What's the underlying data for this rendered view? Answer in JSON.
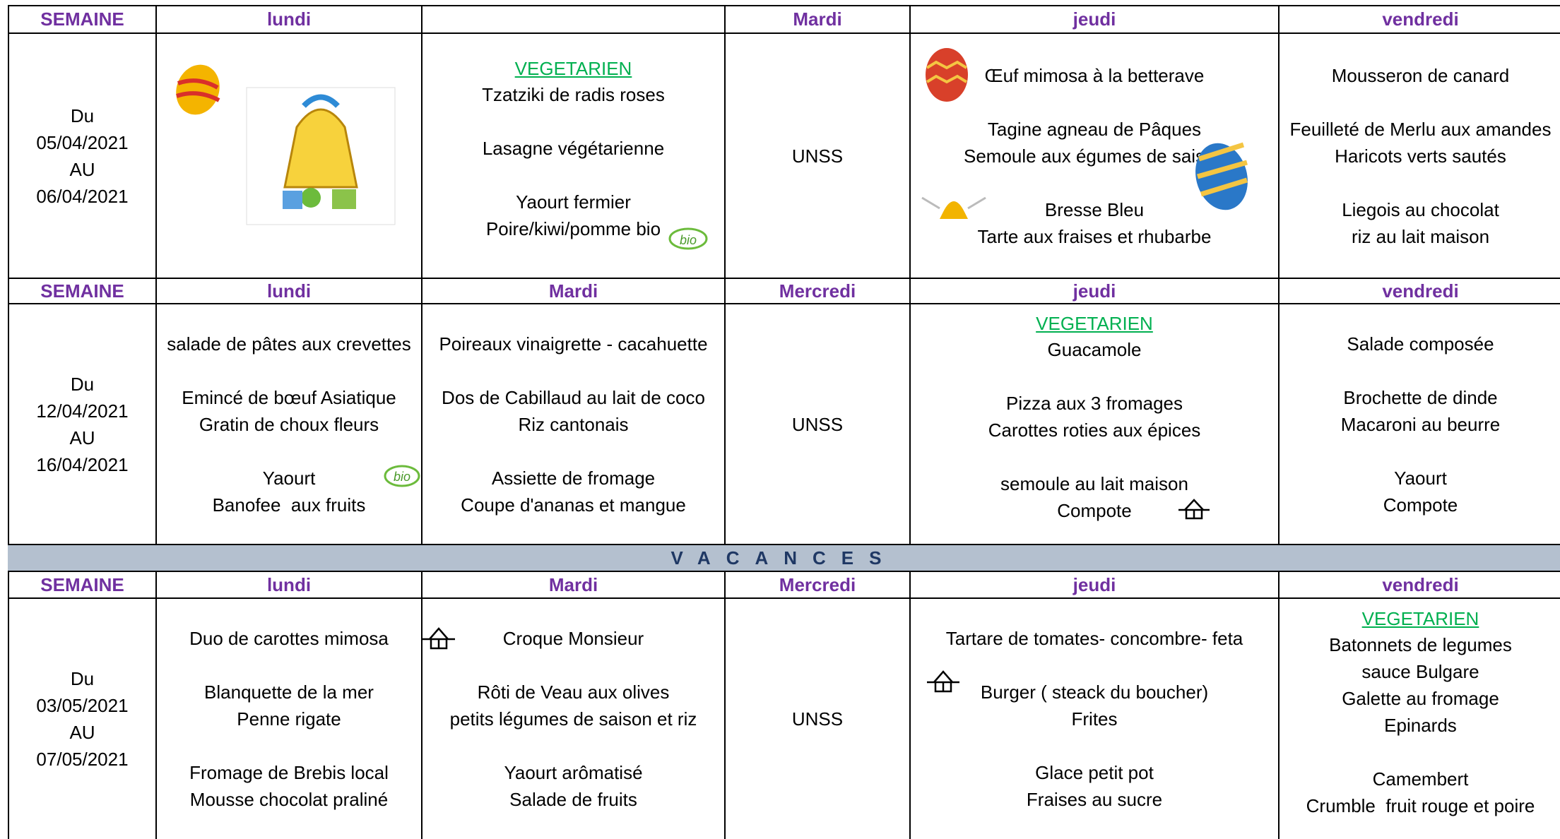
{
  "blocks": [
    {
      "header": [
        "SEMAINE",
        "lundi",
        null,
        "Mardi",
        "jeudi",
        "vendredi"
      ],
      "week": [
        "Du",
        "05/04/2021",
        "AU",
        "06/04/2021"
      ],
      "days": [
        {
          "groups": []
        },
        {
          "tag": "VEGETARIEN",
          "groups": [
            [
              "Tzatziki de radis roses"
            ],
            [
              "Lasagne végétarienne"
            ],
            [
              "Yaourt fermier",
              "Poire/kiwi/pomme bio"
            ]
          ]
        },
        {
          "groups": [
            [
              "UNSS"
            ]
          ]
        },
        {
          "groups": [
            [
              "Œuf mimosa à la betterave"
            ],
            [
              "Tagine agneau de Pâques",
              "Semoule aux égumes de saison"
            ],
            [
              "Bresse Bleu",
              "Tarte aux fraises et rhubarbe"
            ]
          ]
        },
        {
          "groups": [
            [
              "Mousseron de canard"
            ],
            [
              "Feuilleté de Merlu aux amandes",
              "Haricots verts sautés"
            ],
            [
              "Liegois au chocolat",
              "riz au lait maison"
            ]
          ]
        }
      ]
    },
    {
      "header": [
        "SEMAINE",
        "lundi",
        "Mardi",
        "Mercredi",
        "jeudi",
        "vendredi"
      ],
      "week": [
        "Du",
        "12/04/2021",
        "AU",
        "16/04/2021"
      ],
      "days": [
        {
          "groups": [
            [
              "salade de pâtes aux crevettes"
            ],
            [
              "Emincé de bœuf Asiatique",
              "Gratin de choux fleurs"
            ],
            [
              "Yaourt",
              "Banofee  aux fruits"
            ]
          ]
        },
        {
          "groups": [
            [
              "Poireaux vinaigrette - cacahuette"
            ],
            [
              "Dos de Cabillaud au lait de coco",
              "Riz cantonais"
            ],
            [
              "Assiette de fromage",
              "Coupe d'ananas et mangue"
            ]
          ]
        },
        {
          "groups": [
            [
              "UNSS"
            ]
          ]
        },
        {
          "tag": "VEGETARIEN",
          "groups": [
            [
              "Guacamole"
            ],
            [
              "Pizza aux 3 fromages",
              "Carottes roties aux épices"
            ],
            [
              "semoule au lait maison",
              "Compote"
            ]
          ]
        },
        {
          "groups": [
            [
              "Salade composée"
            ],
            [
              "Brochette de dinde",
              "Macaroni au beurre"
            ],
            [
              "Yaourt",
              "Compote"
            ]
          ]
        }
      ]
    },
    {
      "header": [
        "SEMAINE",
        "lundi",
        "Mardi",
        "Mercredi",
        "jeudi",
        "vendredi"
      ],
      "week": [
        "Du",
        "03/05/2021",
        "AU",
        "07/05/2021"
      ],
      "days": [
        {
          "groups": [
            [
              "Duo de carottes mimosa"
            ],
            [
              "Blanquette de la mer",
              "Penne rigate"
            ],
            [
              "Fromage de Brebis local",
              "Mousse chocolat praliné"
            ]
          ]
        },
        {
          "groups": [
            [
              "Croque Monsieur"
            ],
            [
              "Rôti de Veau aux olives",
              "petits légumes de saison et riz"
            ],
            [
              "Yaourt arômatisé",
              "Salade de fruits"
            ]
          ]
        },
        {
          "groups": [
            [
              "UNSS"
            ]
          ]
        },
        {
          "groups": [
            [
              "Tartare de tomates- concombre- feta"
            ],
            [
              "Burger ( steack du boucher)",
              "Frites"
            ],
            [
              "Glace petit pot",
              "Fraises au sucre"
            ]
          ]
        },
        {
          "tag": "VEGETARIEN",
          "groups": [
            [
              "Batonnets de legumes",
              "sauce Bulgare",
              "Galette au fromage",
              "Epinards"
            ],
            [
              "Camembert",
              "Crumble  fruit rouge et poire"
            ]
          ]
        }
      ]
    }
  ],
  "vacances": "VACANCES"
}
